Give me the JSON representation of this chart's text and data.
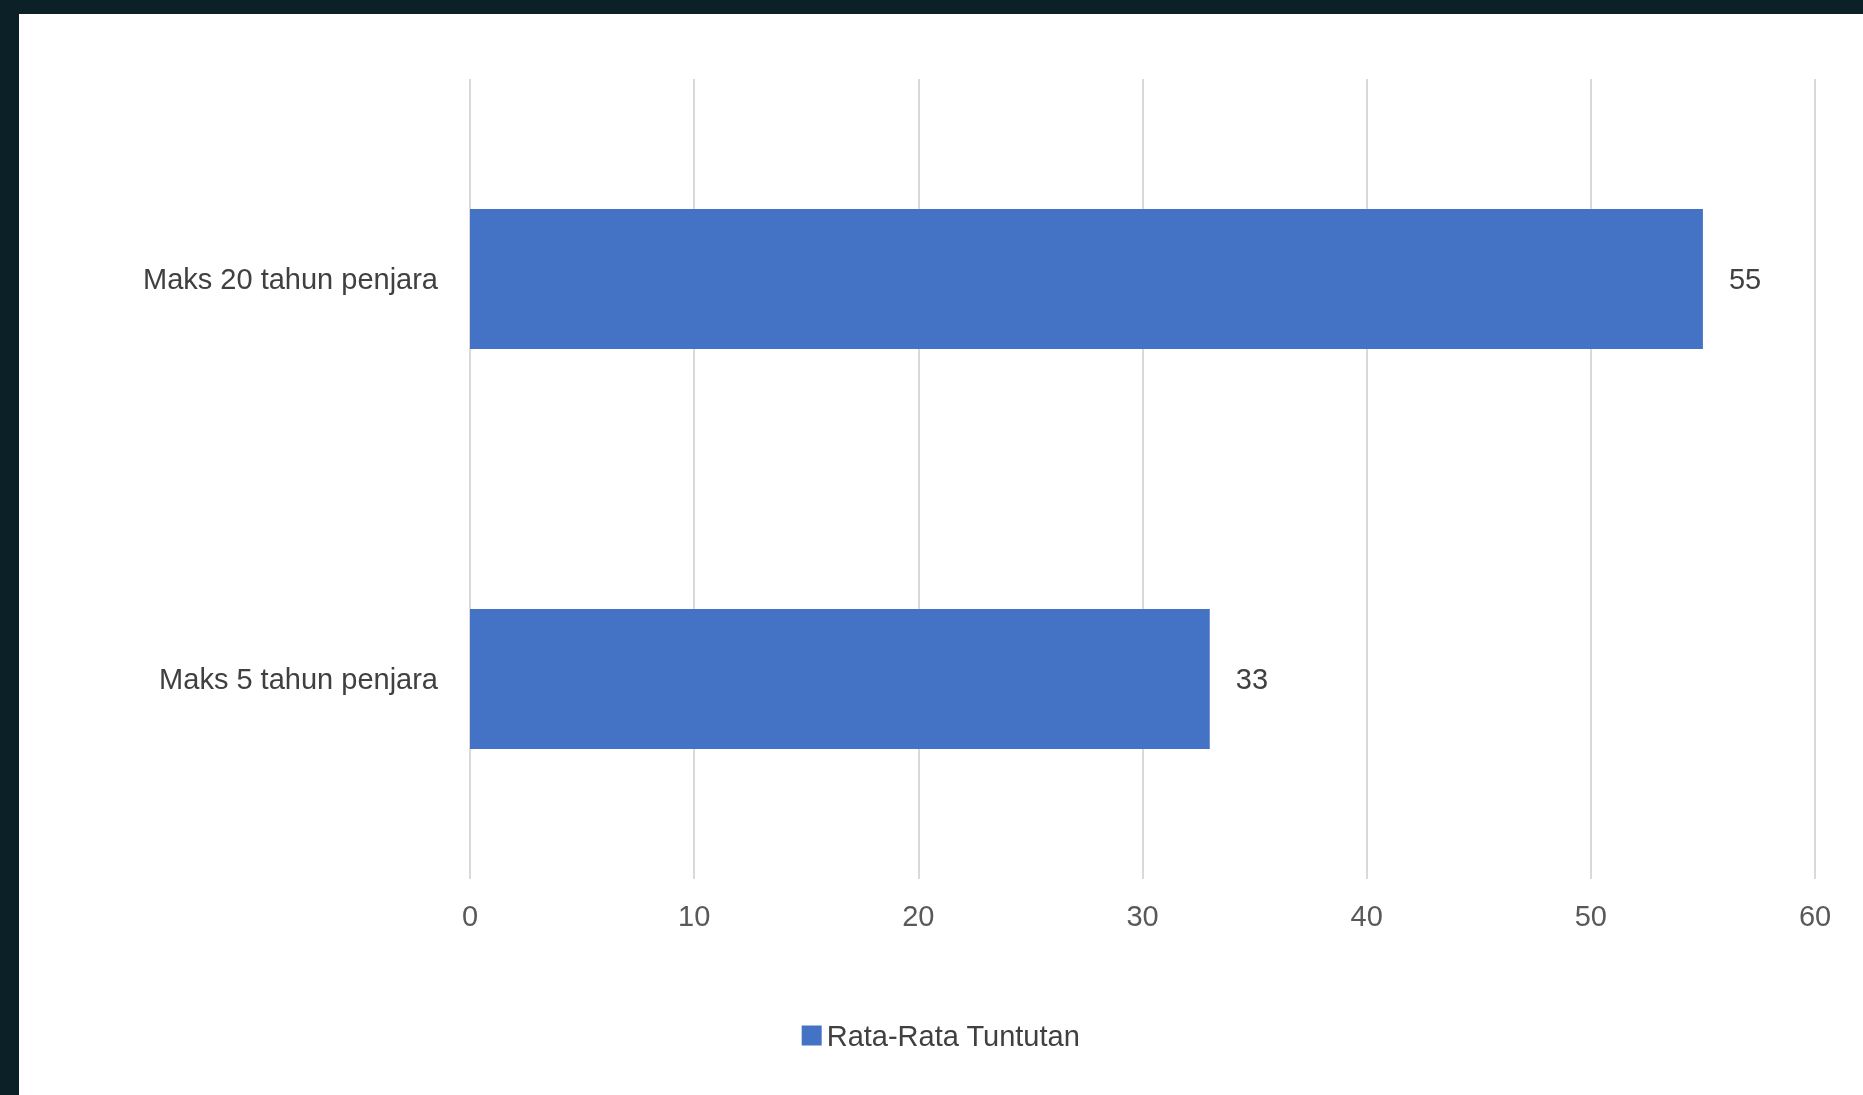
{
  "chart_data": {
    "type": "bar",
    "orientation": "horizontal",
    "categories": [
      "Maks 20 tahun penjara",
      "Maks 5 tahun penjara"
    ],
    "series": [
      {
        "name": "Rata-Rata Tuntutan",
        "color": "#4472c4",
        "values": [
          55,
          33
        ]
      }
    ],
    "xlim": [
      0,
      60
    ],
    "xticks": [
      0,
      10,
      20,
      30,
      40,
      50,
      60
    ],
    "grid": "x",
    "legend": "bottom",
    "data_labels": true
  }
}
